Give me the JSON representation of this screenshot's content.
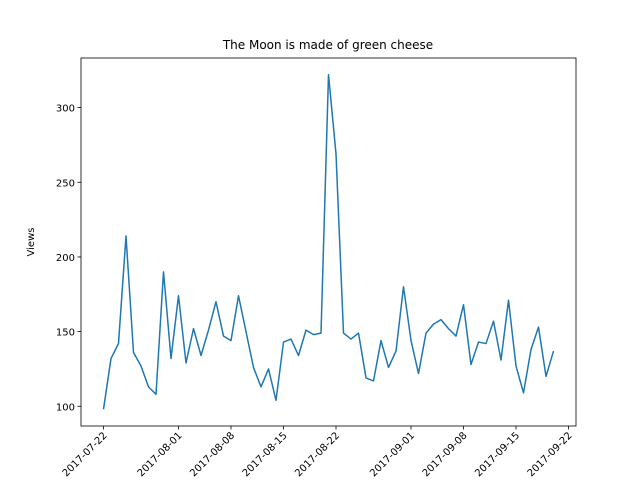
{
  "chart_data": {
    "type": "line",
    "title": "The Moon is made of green cheese",
    "y_label": "Views",
    "x": [
      "2017-07-22",
      "2017-07-23",
      "2017-07-24",
      "2017-07-25",
      "2017-07-26",
      "2017-07-27",
      "2017-07-28",
      "2017-07-29",
      "2017-07-30",
      "2017-07-31",
      "2017-08-01",
      "2017-08-02",
      "2017-08-03",
      "2017-08-04",
      "2017-08-05",
      "2017-08-06",
      "2017-08-07",
      "2017-08-08",
      "2017-08-09",
      "2017-08-10",
      "2017-08-11",
      "2017-08-12",
      "2017-08-13",
      "2017-08-14",
      "2017-08-15",
      "2017-08-16",
      "2017-08-17",
      "2017-08-18",
      "2017-08-19",
      "2017-08-20",
      "2017-08-21",
      "2017-08-22",
      "2017-08-23",
      "2017-08-24",
      "2017-08-25",
      "2017-08-26",
      "2017-08-27",
      "2017-08-28",
      "2017-08-29",
      "2017-08-30",
      "2017-08-31",
      "2017-09-01",
      "2017-09-02",
      "2017-09-03",
      "2017-09-04",
      "2017-09-05",
      "2017-09-06",
      "2017-09-07",
      "2017-09-08",
      "2017-09-09",
      "2017-09-10",
      "2017-09-11",
      "2017-09-12",
      "2017-09-13",
      "2017-09-14",
      "2017-09-15",
      "2017-09-16",
      "2017-09-17",
      "2017-09-18",
      "2017-09-19",
      "2017-09-20"
    ],
    "values": [
      98,
      132,
      142,
      214,
      136,
      127,
      113,
      108,
      190,
      132,
      174,
      129,
      152,
      134,
      151,
      170,
      147,
      144,
      174,
      150,
      126,
      113,
      125,
      104,
      143,
      145,
      134,
      151,
      148,
      149,
      322,
      269,
      149,
      145,
      149,
      119,
      117,
      144,
      126,
      137,
      180,
      144,
      122,
      149,
      155,
      158,
      152,
      147,
      168,
      128,
      143,
      142,
      157,
      131,
      171,
      127,
      109,
      138,
      153,
      120,
      137
    ],
    "color": "#1f77b4",
    "xlim": [
      "2017-07-19",
      "2017-09-23"
    ],
    "xticks": [
      "2017-07-22",
      "2017-08-01",
      "2017-08-08",
      "2017-08-15",
      "2017-08-22",
      "2017-09-01",
      "2017-09-08",
      "2017-09-15",
      "2017-09-22"
    ],
    "ylim": [
      86.8,
      333.2
    ],
    "yticks": [
      100,
      150,
      200,
      250,
      300
    ]
  }
}
